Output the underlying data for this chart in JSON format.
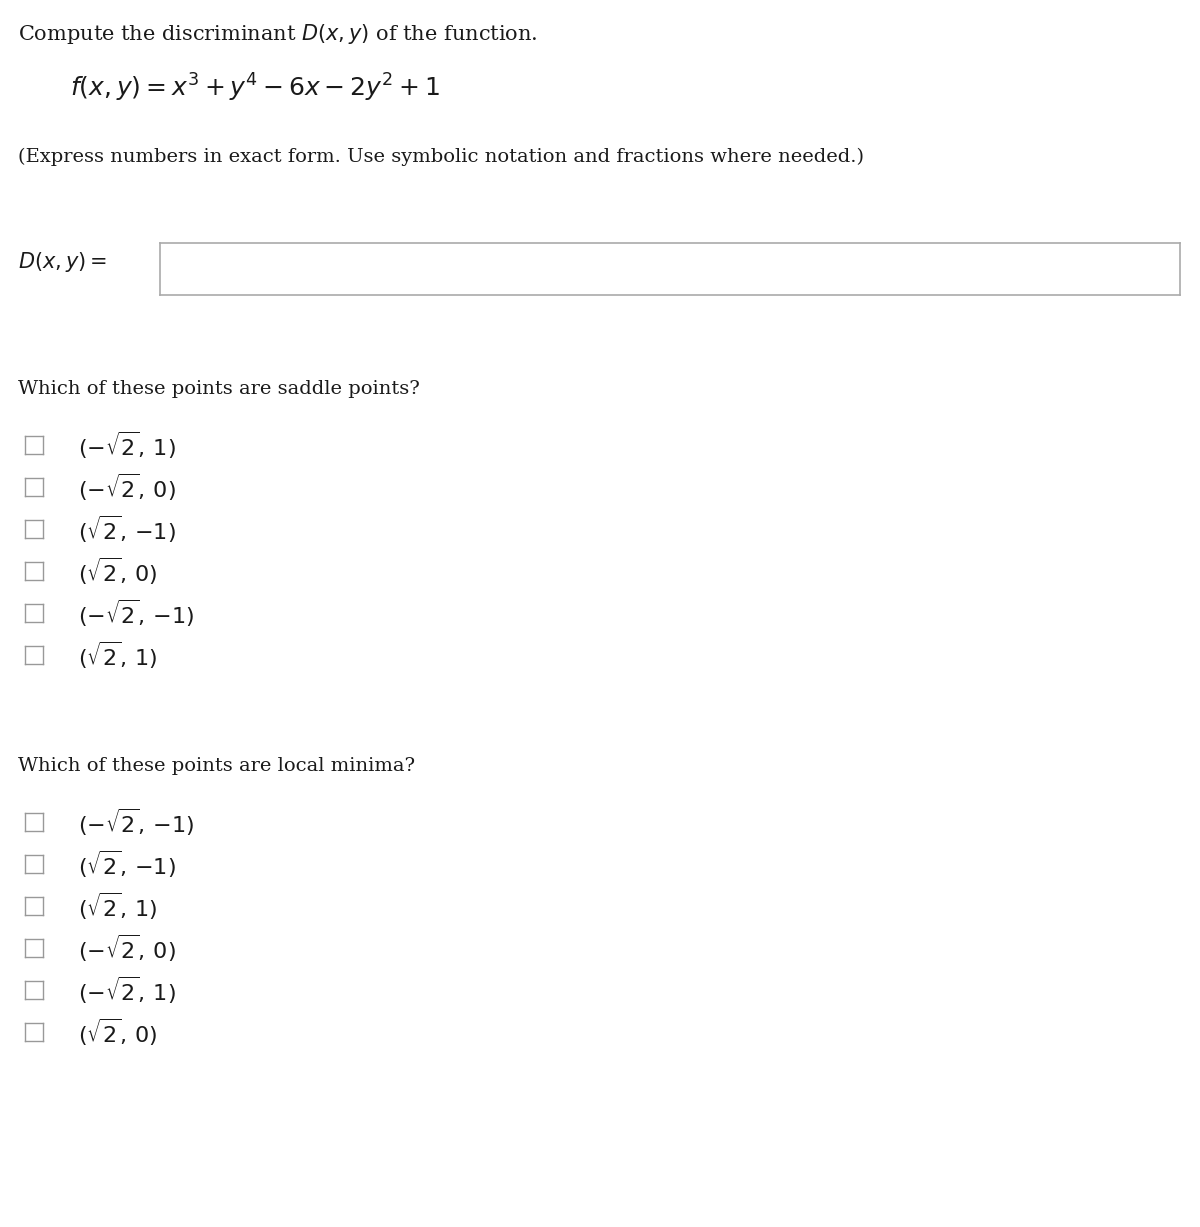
{
  "bg_color": "#ffffff",
  "title_text": "Compute the discriminant $D(x, y)$ of the function.",
  "function_text": "$f(x, y) = x^3 + y^4 - 6x - 2y^2 + 1$",
  "note_text": "(Express numbers in exact form. Use symbolic notation and fractions where needed.)",
  "dxy_label": "$D(x, y) =$",
  "saddle_header": "Which of these points are saddle points?",
  "saddle_options": [
    "$(-\\sqrt{2},\\, 1)$",
    "$(-\\sqrt{2},\\, 0)$",
    "$(\\sqrt{2},\\, {-}1)$",
    "$(\\sqrt{2},\\, 0)$",
    "$(-\\sqrt{2},\\, {-}1)$",
    "$(\\sqrt{2},\\, 1)$"
  ],
  "minima_header": "Which of these points are local minima?",
  "minima_options": [
    "$(-\\sqrt{2},\\, {-}1)$",
    "$(\\sqrt{2},\\, {-}1)$",
    "$(\\sqrt{2},\\, 1)$",
    "$(-\\sqrt{2},\\, 0)$",
    "$(-\\sqrt{2},\\, 1)$",
    "$(\\sqrt{2},\\, 0)$"
  ],
  "text_color": "#1a1a1a",
  "box_edge_color": "#aaaaaa",
  "checkbox_edge_color": "#999999"
}
